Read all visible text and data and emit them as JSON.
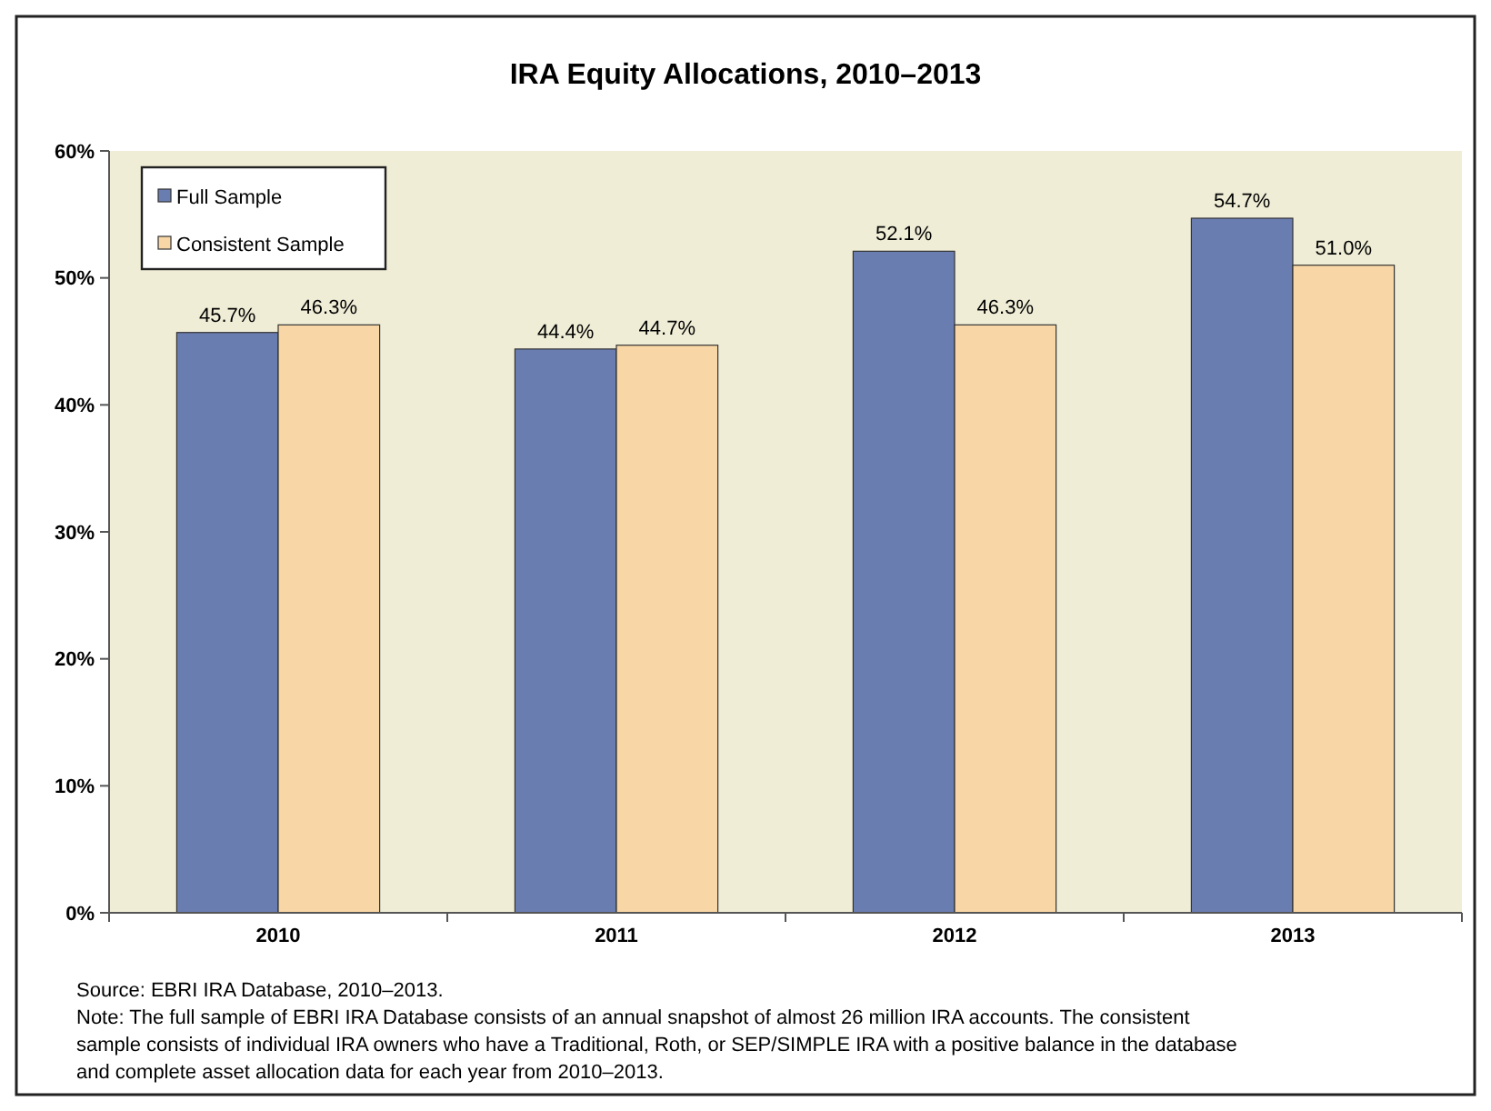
{
  "chart_data": {
    "type": "bar",
    "title": "IRA Equity Allocations, 2010–2013",
    "categories": [
      "2010",
      "2011",
      "2012",
      "2013"
    ],
    "series": [
      {
        "name": "Full Sample",
        "color": "#6a7db0",
        "values": [
          45.7,
          44.4,
          52.1,
          54.7
        ],
        "value_labels": [
          "45.7%",
          "44.4%",
          "52.1%",
          "54.7%"
        ]
      },
      {
        "name": "Consistent Sample",
        "color": "#f8d6a6",
        "values": [
          46.3,
          44.7,
          46.3,
          51.0
        ],
        "value_labels": [
          "46.3%",
          "44.7%",
          "46.3%",
          "51.0%"
        ]
      }
    ],
    "ylim": [
      0,
      60
    ],
    "yticks": [
      {
        "value": 0,
        "label": "0%"
      },
      {
        "value": 10,
        "label": "10%"
      },
      {
        "value": 20,
        "label": "20%"
      },
      {
        "value": 30,
        "label": "30%"
      },
      {
        "value": 40,
        "label": "40%"
      },
      {
        "value": 50,
        "label": "50%"
      },
      {
        "value": 60,
        "label": "60%"
      }
    ],
    "legend": "top left",
    "annotations": [
      "Source: EBRI IRA Database, 2010–2013.",
      "Note: The  full sample of EBRI IRA Database consists of an annual snapshot of almost 26 million IRA accounts. The consistent sample consists of individual IRA owners who have a Traditional, Roth, or SEP/SIMPLE IRA with a positive balance in the database and complete asset allocation data for each year from 2010–2013."
    ]
  }
}
